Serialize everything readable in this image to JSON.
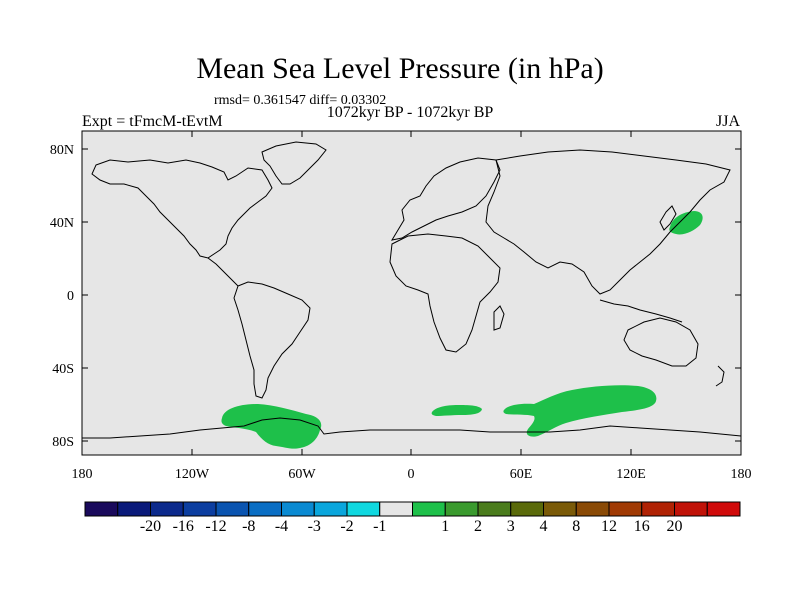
{
  "title": "Mean Sea Level Pressure (in hPa)",
  "stats": "rmsd= 0.361547 diff= 0.03302",
  "subtitle": "1072kyr BP - 1072kyr BP",
  "expt": "Expt = tFmcM-tEvtM",
  "season": "JJA",
  "chart_data": {
    "type": "heatmap",
    "title": "Mean Sea Level Pressure (in hPa)",
    "lon_ticks": [
      "180",
      "120W",
      "60W",
      "0",
      "60E",
      "120E",
      "180"
    ],
    "lat_ticks": [
      "80N",
      "40N",
      "0",
      "40S",
      "80S"
    ],
    "lon_range": [
      -180,
      180
    ],
    "lat_range": [
      -90,
      90
    ],
    "background_fill": "#e6e6e6",
    "colorbar": {
      "colors": [
        "#1a0a5c",
        "#0a1a7a",
        "#0c2a8c",
        "#0c3ea0",
        "#0a54b0",
        "#0a6ec4",
        "#0a8ad2",
        "#0aa6dc",
        "#10d8e0",
        "#e6e6e6",
        "#1ec04a",
        "#3a9a2e",
        "#4a7c1c",
        "#5a6a0a",
        "#7a5a08",
        "#8a4a06",
        "#a03a04",
        "#b02204",
        "#c01208",
        "#d00a0a"
      ],
      "labels": [
        "-20",
        "-16",
        "-12",
        "-8",
        "-4",
        "-3",
        "-2",
        "-1",
        "1",
        "2",
        "3",
        "4",
        "8",
        "12",
        "16",
        "20"
      ]
    },
    "anomaly_regions": [
      {
        "name": "NW Pacific off Japan",
        "value_range": "1 to 2",
        "color": "#1ec04a"
      },
      {
        "name": "Southern Ocean Pacific sector",
        "value_range": "1 to 2",
        "color": "#1ec04a"
      },
      {
        "name": "Southern Ocean South Atlantic",
        "value_range": "1 to 2",
        "color": "#1ec04a"
      },
      {
        "name": "Southern Ocean Indian sector",
        "value_range": "1 to 2",
        "color": "#1ec04a"
      }
    ]
  }
}
